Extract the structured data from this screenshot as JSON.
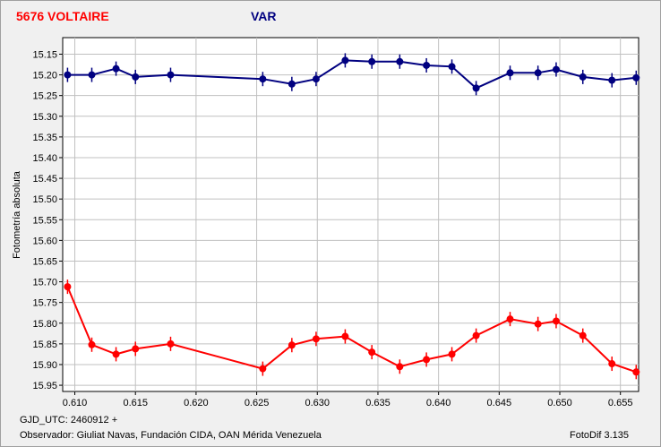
{
  "header": {
    "title": "5676 VOLTAIRE",
    "series_label": "VAR"
  },
  "footer": {
    "gjd": "GJD_UTC: 2460912 +",
    "observer": "Observador: Giuliat Navas, Fundación CIDA, OAN Mérida Venezuela",
    "software": "FotoDif 3.135"
  },
  "colors": {
    "series_top": "#000080",
    "series_bottom": "#ff0000",
    "title": "#ff0000",
    "plot_background": "#ffffff",
    "grid": "#c0c0c0"
  },
  "chart_data": {
    "type": "line",
    "ylabel": "Fotometría absoluta",
    "xlim": [
      0.609,
      0.6565
    ],
    "ylim": [
      15.11,
      15.965
    ],
    "y_inverted": true,
    "grid": true,
    "x_ticks": [
      "0.610",
      "0.615",
      "0.620",
      "0.625",
      "0.630",
      "0.635",
      "0.640",
      "0.645",
      "0.650",
      "0.655"
    ],
    "y_ticks": [
      "15.15",
      "15.20",
      "15.25",
      "15.30",
      "15.35",
      "15.40",
      "15.45",
      "15.50",
      "15.55",
      "15.60",
      "15.65",
      "15.70",
      "15.75",
      "15.80",
      "15.85",
      "15.90",
      "15.95"
    ],
    "series": [
      {
        "color": "#000080",
        "x": [
          0.6094,
          0.6114,
          0.6134,
          0.615,
          0.6179,
          0.6255,
          0.6279,
          0.6299,
          0.6323,
          0.6345,
          0.6368,
          0.639,
          0.6411,
          0.6431,
          0.6459,
          0.6482,
          0.6497,
          0.6519,
          0.6543,
          0.6563
        ],
        "y": [
          15.2,
          15.2,
          15.185,
          15.205,
          15.2,
          15.21,
          15.222,
          15.21,
          15.165,
          15.168,
          15.168,
          15.177,
          15.18,
          15.232,
          15.195,
          15.195,
          15.187,
          15.205,
          15.213,
          15.207
        ]
      },
      {
        "color": "#ff0000",
        "x": [
          0.6094,
          0.6114,
          0.6134,
          0.615,
          0.6179,
          0.6255,
          0.6279,
          0.6299,
          0.6323,
          0.6345,
          0.6368,
          0.639,
          0.6411,
          0.6431,
          0.6459,
          0.6482,
          0.6497,
          0.6519,
          0.6543,
          0.6563
        ],
        "y": [
          15.712,
          15.852,
          15.875,
          15.862,
          15.85,
          15.91,
          15.853,
          15.838,
          15.832,
          15.87,
          15.905,
          15.888,
          15.875,
          15.83,
          15.79,
          15.802,
          15.795,
          15.83,
          15.898,
          15.918
        ]
      }
    ]
  }
}
